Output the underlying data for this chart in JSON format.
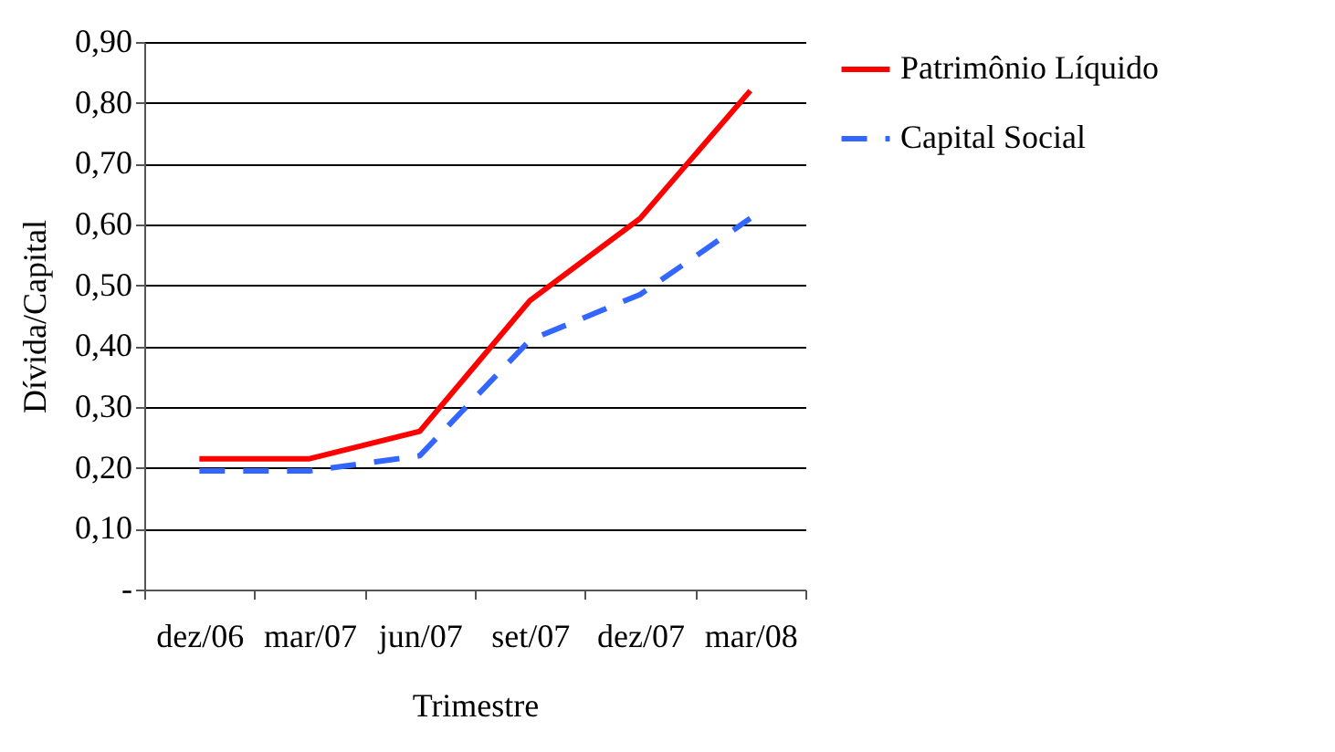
{
  "chart_data": {
    "type": "line",
    "xlabel": "Trimestre",
    "ylabel": "Dívida/Capital",
    "categories": [
      "dez/06",
      "mar/07",
      "jun/07",
      "set/07",
      "dez/07",
      "mar/08"
    ],
    "series": [
      {
        "name": "Patrimônio Líquido",
        "color": "#ff0000",
        "line_style": "solid",
        "values": [
          0.215,
          0.215,
          0.26,
          0.475,
          0.61,
          0.82
        ]
      },
      {
        "name": "Capital Social",
        "color": "#3366ff",
        "line_style": "dashed",
        "values": [
          0.195,
          0.195,
          0.22,
          0.41,
          0.485,
          0.61
        ]
      }
    ],
    "ylim": [
      0,
      0.9
    ],
    "yticks": [
      {
        "value": 0,
        "label": "-"
      },
      {
        "value": 0.1,
        "label": "0,10"
      },
      {
        "value": 0.2,
        "label": "0,20"
      },
      {
        "value": 0.3,
        "label": "0,30"
      },
      {
        "value": 0.4,
        "label": "0,40"
      },
      {
        "value": 0.5,
        "label": "0,50"
      },
      {
        "value": 0.6,
        "label": "0,60"
      },
      {
        "value": 0.7,
        "label": "0,70"
      },
      {
        "value": 0.8,
        "label": "0,80"
      },
      {
        "value": 0.9,
        "label": "0,90"
      }
    ],
    "grid": "y",
    "legend": "right",
    "marker": "none"
  }
}
